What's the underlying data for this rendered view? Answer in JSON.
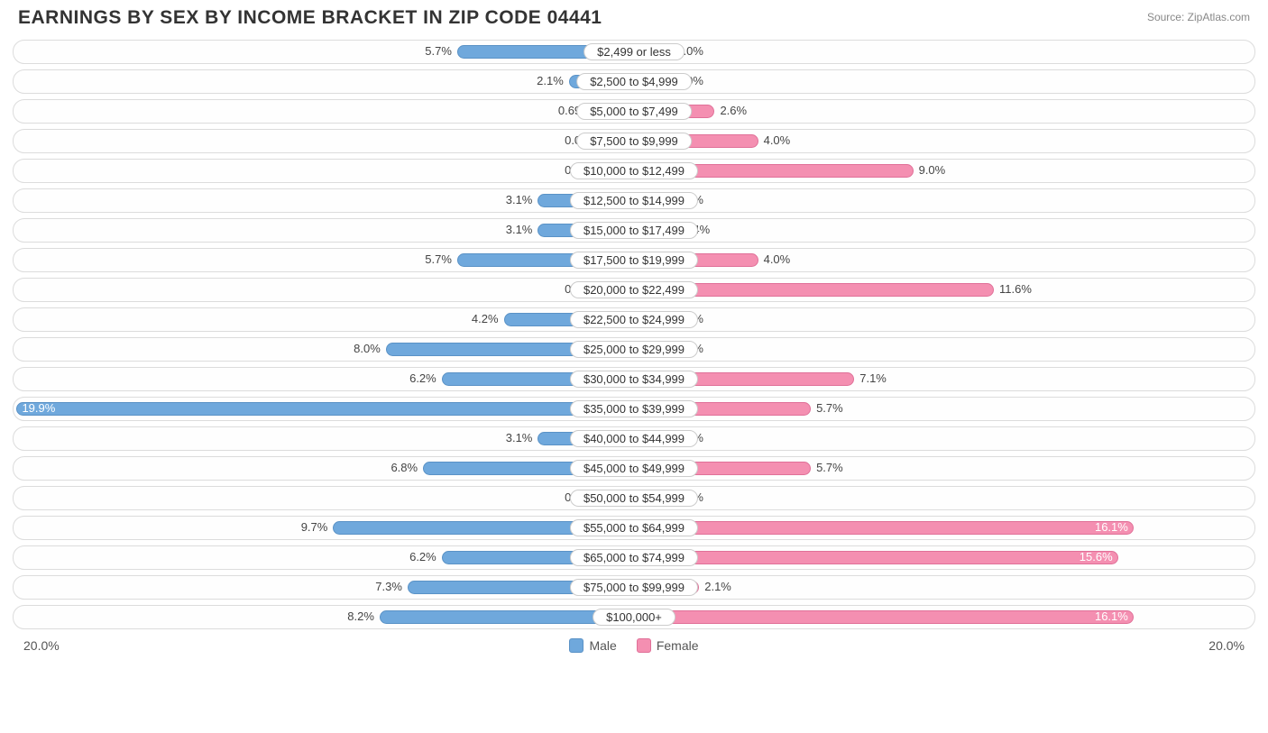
{
  "title": "EARNINGS BY SEX BY INCOME BRACKET IN ZIP CODE 04441",
  "source": "Source: ZipAtlas.com",
  "axis_left": "20.0%",
  "axis_right": "20.0%",
  "axis_max": 20.0,
  "legend": {
    "male": "Male",
    "female": "Female"
  },
  "colors": {
    "male_fill": "#6fa8dc",
    "male_border": "#5a92c6",
    "female_fill": "#f48fb1",
    "female_border": "#e07098",
    "track_border": "#dcdcdc",
    "text": "#444444",
    "title": "#333333"
  },
  "min_bar_pct": 1.2,
  "label_inside_threshold": 14.0,
  "rows": [
    {
      "bracket": "$2,499 or less",
      "male": 5.7,
      "male_label": "5.7%",
      "female": 0.0,
      "female_label": "0.0%"
    },
    {
      "bracket": "$2,500 to $4,999",
      "male": 2.1,
      "male_label": "2.1%",
      "female": 0.0,
      "female_label": "0.0%"
    },
    {
      "bracket": "$5,000 to $7,499",
      "male": 0.69,
      "male_label": "0.69%",
      "female": 2.6,
      "female_label": "2.6%"
    },
    {
      "bracket": "$7,500 to $9,999",
      "male": 0.0,
      "male_label": "0.0%",
      "female": 4.0,
      "female_label": "4.0%"
    },
    {
      "bracket": "$10,000 to $12,499",
      "male": 0.0,
      "male_label": "0.0%",
      "female": 9.0,
      "female_label": "9.0%"
    },
    {
      "bracket": "$12,500 to $14,999",
      "male": 3.1,
      "male_label": "3.1%",
      "female": 0.0,
      "female_label": "0.0%"
    },
    {
      "bracket": "$15,000 to $17,499",
      "male": 3.1,
      "male_label": "3.1%",
      "female": 0.24,
      "female_label": "0.24%"
    },
    {
      "bracket": "$17,500 to $19,999",
      "male": 5.7,
      "male_label": "5.7%",
      "female": 4.0,
      "female_label": "4.0%"
    },
    {
      "bracket": "$20,000 to $22,499",
      "male": 0.0,
      "male_label": "0.0%",
      "female": 11.6,
      "female_label": "11.6%"
    },
    {
      "bracket": "$22,500 to $24,999",
      "male": 4.2,
      "male_label": "4.2%",
      "female": 0.0,
      "female_label": "0.0%"
    },
    {
      "bracket": "$25,000 to $29,999",
      "male": 8.0,
      "male_label": "8.0%",
      "female": 0.0,
      "female_label": "0.0%"
    },
    {
      "bracket": "$30,000 to $34,999",
      "male": 6.2,
      "male_label": "6.2%",
      "female": 7.1,
      "female_label": "7.1%"
    },
    {
      "bracket": "$35,000 to $39,999",
      "male": 19.9,
      "male_label": "19.9%",
      "female": 5.7,
      "female_label": "5.7%"
    },
    {
      "bracket": "$40,000 to $44,999",
      "male": 3.1,
      "male_label": "3.1%",
      "female": 0.0,
      "female_label": "0.0%"
    },
    {
      "bracket": "$45,000 to $49,999",
      "male": 6.8,
      "male_label": "6.8%",
      "female": 5.7,
      "female_label": "5.7%"
    },
    {
      "bracket": "$50,000 to $54,999",
      "male": 0.0,
      "male_label": "0.0%",
      "female": 0.0,
      "female_label": "0.0%"
    },
    {
      "bracket": "$55,000 to $64,999",
      "male": 9.7,
      "male_label": "9.7%",
      "female": 16.1,
      "female_label": "16.1%"
    },
    {
      "bracket": "$65,000 to $74,999",
      "male": 6.2,
      "male_label": "6.2%",
      "female": 15.6,
      "female_label": "15.6%"
    },
    {
      "bracket": "$75,000 to $99,999",
      "male": 7.3,
      "male_label": "7.3%",
      "female": 2.1,
      "female_label": "2.1%"
    },
    {
      "bracket": "$100,000+",
      "male": 8.2,
      "male_label": "8.2%",
      "female": 16.1,
      "female_label": "16.1%"
    }
  ]
}
